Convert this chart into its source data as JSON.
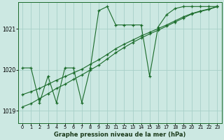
{
  "background_color": "#cce8e2",
  "line_color": "#1a6b2a",
  "grid_color": "#a8cfc8",
  "xlabel": "Graphe pression niveau de la mer (hPa)",
  "ylim": [
    1018.7,
    1021.65
  ],
  "xlim": [
    -0.5,
    23.5
  ],
  "yticks": [
    1019,
    1020,
    1021
  ],
  "xticks": [
    0,
    1,
    2,
    3,
    4,
    5,
    6,
    7,
    8,
    9,
    10,
    11,
    12,
    13,
    14,
    15,
    16,
    17,
    18,
    19,
    20,
    21,
    22,
    23
  ],
  "series": [
    {
      "x": [
        0,
        1,
        2,
        3,
        4,
        5,
        6,
        7,
        8,
        9,
        10,
        11,
        12,
        13,
        14,
        15,
        16,
        17,
        18,
        19,
        20,
        21,
        22,
        23
      ],
      "y": [
        1020.05,
        1020.05,
        1019.2,
        1019.85,
        1019.2,
        1020.05,
        1020.05,
        1019.2,
        1020.05,
        1021.45,
        1021.55,
        1021.1,
        1021.1,
        1021.1,
        1021.1,
        1019.85,
        1021.05,
        1021.35,
        1021.5,
        1021.55,
        1021.55,
        1021.55,
        1021.55,
        1021.55
      ]
    },
    {
      "x": [
        0,
        1,
        2,
        3,
        4,
        5,
        6,
        7,
        8,
        9,
        10,
        11,
        12,
        13,
        14,
        15,
        16,
        17,
        18,
        19,
        20,
        21,
        22,
        23
      ],
      "y": [
        1019.1,
        1019.18,
        1019.3,
        1019.42,
        1019.55,
        1019.65,
        1019.77,
        1019.88,
        1020.0,
        1020.12,
        1020.27,
        1020.42,
        1020.55,
        1020.67,
        1020.78,
        1020.88,
        1020.97,
        1021.07,
        1021.17,
        1021.27,
        1021.37,
        1021.43,
        1021.48,
        1021.55
      ]
    },
    {
      "x": [
        0,
        1,
        2,
        3,
        4,
        5,
        6,
        7,
        8,
        9,
        10,
        11,
        12,
        13,
        14,
        15,
        16,
        17,
        18,
        19,
        20,
        21,
        22,
        23
      ],
      "y": [
        1019.4,
        1019.47,
        1019.55,
        1019.65,
        1019.75,
        1019.84,
        1019.93,
        1020.02,
        1020.14,
        1020.25,
        1020.38,
        1020.52,
        1020.63,
        1020.73,
        1020.83,
        1020.92,
        1021.01,
        1021.1,
        1021.2,
        1021.3,
        1021.38,
        1021.44,
        1021.49,
        1021.55
      ]
    }
  ]
}
